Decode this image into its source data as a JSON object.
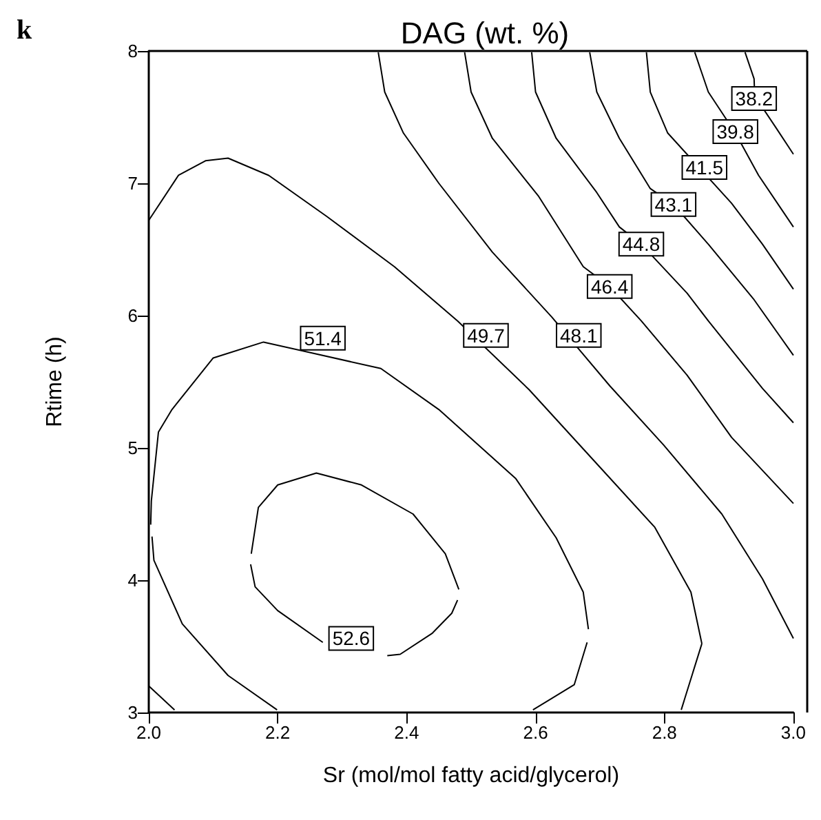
{
  "chart_data": {
    "type": "line",
    "title": "DAG (wt. %)",
    "xlabel": "Sr (mol/mol fatty acid/glycerol)",
    "ylabel": "Rtime (h)",
    "xlim": [
      2,
      3
    ],
    "xticks": [
      {
        "value": 2,
        "label": "2.0"
      },
      {
        "value": 2.2,
        "label": "2.2"
      },
      {
        "value": 2.4,
        "label": "2.4"
      },
      {
        "value": 2.6,
        "label": "2.6"
      },
      {
        "value": 2.8,
        "label": "2.8"
      },
      {
        "value": 3,
        "label": "3.0"
      }
    ],
    "ylim": [
      3,
      8
    ],
    "yticks": [
      3,
      4,
      5,
      6,
      7,
      8
    ],
    "grid": false,
    "marker": "none",
    "line_style": "solid",
    "series": [
      {
        "color": "#000000",
        "x": [
          2.159,
          2.17,
          2.2,
          2.26,
          2.33,
          2.41,
          2.46,
          2.481
        ],
        "values": [
          4.2,
          4.55,
          4.72,
          4.81,
          4.72,
          4.5,
          4.2,
          3.93
        ]
      },
      {
        "color": "#000000",
        "x": [
          2.158,
          2.165,
          2.2,
          2.27
        ],
        "values": [
          4.12,
          3.95,
          3.77,
          3.53
        ]
      },
      {
        "color": "#000000",
        "x": [
          2.37,
          2.39,
          2.44,
          2.47,
          2.479
        ],
        "values": [
          3.43,
          3.44,
          3.6,
          3.75,
          3.85
        ]
      },
      {
        "color": "#000000",
        "x": [
          2.005,
          2.008,
          2.052,
          2.123,
          2.199
        ],
        "values": [
          4.33,
          4.15,
          3.67,
          3.28,
          3.02
        ]
      },
      {
        "color": "#000000",
        "x": [
          2.003,
          2.004,
          2.015,
          2.036,
          2.1,
          2.178,
          2.36,
          2.45,
          2.569,
          2.632,
          2.674,
          2.682
        ],
        "values": [
          4.42,
          4.6,
          5.12,
          5.29,
          5.68,
          5.8,
          5.6,
          5.29,
          4.77,
          4.32,
          3.91,
          3.63
        ]
      },
      {
        "color": "#000000",
        "x": [
          2.596,
          2.66,
          2.68
        ],
        "values": [
          3.02,
          3.21,
          3.53
        ]
      },
      {
        "color": "#000000",
        "x": [
          2.0,
          2.04
        ],
        "values": [
          3.2,
          3.02
        ]
      },
      {
        "color": "#000000",
        "x": [
          2.0,
          2.046,
          2.088,
          2.123,
          2.186,
          2.276,
          2.381,
          2.479,
          2.59,
          2.695,
          2.785,
          2.841,
          2.858
        ],
        "values": [
          6.72,
          7.06,
          7.17,
          7.19,
          7.06,
          6.75,
          6.37,
          5.96,
          5.44,
          4.88,
          4.4,
          3.91,
          3.52
        ]
      },
      {
        "color": "#000000",
        "x": [
          2.826,
          2.858
        ],
        "values": [
          3.02,
          3.52
        ]
      },
      {
        "color": "#000000",
        "x": [
          2.356,
          2.366,
          2.395,
          2.45,
          2.533,
          2.625,
          2.715,
          2.799,
          2.889,
          2.952,
          3.0
        ],
        "values": [
          7.99,
          7.69,
          7.38,
          7.0,
          6.48,
          5.99,
          5.47,
          5.02,
          4.5,
          4.01,
          3.56
        ]
      },
      {
        "color": "#000000",
        "x": [
          2.49,
          2.5,
          2.533,
          2.605,
          2.674,
          2.715,
          2.764,
          2.835,
          2.904,
          3.0
        ],
        "values": [
          7.99,
          7.69,
          7.34,
          6.9,
          6.37,
          6.22,
          5.96,
          5.55,
          5.08,
          4.58
        ]
      },
      {
        "color": "#000000",
        "x": [
          2.594,
          2.6,
          2.632,
          2.695,
          2.73,
          2.764,
          2.835,
          2.868,
          2.952,
          3.0
        ],
        "values": [
          7.99,
          7.69,
          7.34,
          6.93,
          6.67,
          6.54,
          6.17,
          5.96,
          5.45,
          5.19
        ]
      },
      {
        "color": "#000000",
        "x": [
          2.684,
          2.695,
          2.73,
          2.778,
          2.814,
          2.868,
          2.939,
          3.0
        ],
        "values": [
          7.99,
          7.69,
          7.34,
          6.96,
          6.84,
          6.54,
          6.12,
          5.7
        ]
      },
      {
        "color": "#000000",
        "x": [
          2.772,
          2.778,
          2.805,
          2.904,
          2.952,
          3.0
        ],
        "values": [
          7.99,
          7.69,
          7.38,
          6.85,
          6.54,
          6.2
        ]
      },
      {
        "color": "#000000",
        "x": [
          2.847,
          2.868,
          2.91,
          2.946,
          3.0
        ],
        "values": [
          7.99,
          7.69,
          7.38,
          7.06,
          6.67
        ]
      },
      {
        "color": "#000000",
        "x": [
          2.925,
          2.939,
          2.94,
          2.973,
          3.0
        ],
        "values": [
          7.99,
          7.79,
          7.66,
          7.42,
          7.22
        ]
      }
    ],
    "annotations": [
      "k",
      {
        "text": "52.6",
        "x": 2.314,
        "y": 3.56
      },
      {
        "text": "51.4",
        "x": 2.27,
        "y": 5.83
      },
      {
        "text": "49.7",
        "x": 2.523,
        "y": 5.85
      },
      {
        "text": "48.1",
        "x": 2.667,
        "y": 5.85
      },
      {
        "text": "46.4",
        "x": 2.715,
        "y": 6.22
      },
      {
        "text": "44.8",
        "x": 2.764,
        "y": 6.54
      },
      {
        "text": "43.1",
        "x": 2.814,
        "y": 6.84
      },
      {
        "text": "41.5",
        "x": 2.862,
        "y": 7.12
      },
      {
        "text": "39.8",
        "x": 2.91,
        "y": 7.39
      },
      {
        "text": "38.2",
        "x": 2.939,
        "y": 7.64
      }
    ]
  }
}
